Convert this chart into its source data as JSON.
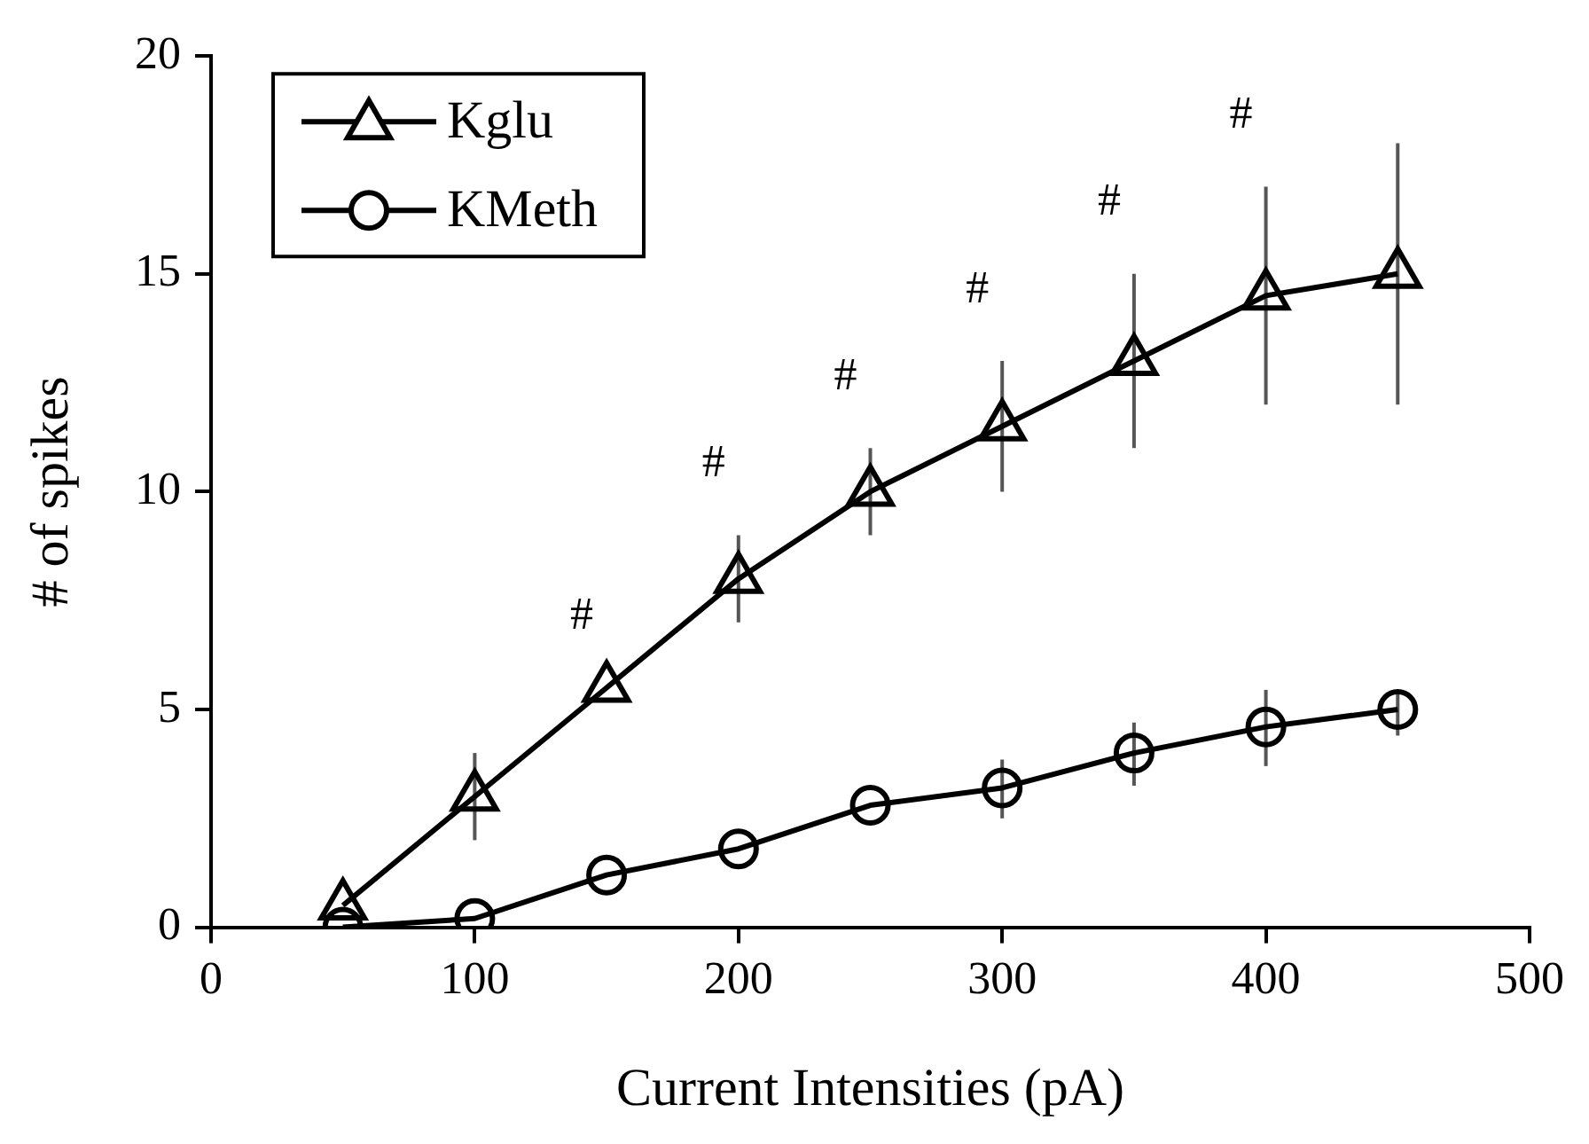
{
  "chart_data": {
    "type": "line",
    "xlabel": "Current Intensities (pA)",
    "ylabel": "# of spikes",
    "x": [
      50,
      100,
      150,
      200,
      250,
      300,
      350,
      400,
      450
    ],
    "xlim": [
      0,
      500
    ],
    "xticks": [
      0,
      100,
      200,
      300,
      400,
      500
    ],
    "ylim": [
      0,
      20
    ],
    "yticks": [
      0,
      5,
      10,
      15,
      20
    ],
    "grid": false,
    "legend": "top left",
    "line_style": "solid",
    "series": [
      {
        "name": "Kglu",
        "color": "#000000",
        "marker": "triangle",
        "values": [
          0.5,
          3,
          5.5,
          8,
          10,
          11.5,
          13,
          14.5,
          15
        ],
        "errors": [
          null,
          1,
          null,
          1,
          1,
          [
            10,
            13
          ],
          [
            11,
            15
          ],
          [
            12,
            17
          ],
          [
            12,
            18
          ]
        ]
      },
      {
        "name": "KMeth",
        "color": "#000000",
        "marker": "circle",
        "values": [
          0,
          0.2,
          1.2,
          1.8,
          2.8,
          3.2,
          4,
          4.6,
          5
        ],
        "errors": [
          null,
          null,
          null,
          null,
          null,
          [
            2.5,
            3.85
          ],
          [
            3.25,
            4.7
          ],
          [
            3.7,
            5.45
          ],
          [
            4.4,
            5.4
          ]
        ]
      }
    ],
    "annotations": [
      {
        "text": "#",
        "x": 150,
        "y": 5.5
      },
      {
        "text": "#",
        "x": 200,
        "y": 9
      },
      {
        "text": "#",
        "x": 250,
        "y": 11
      },
      {
        "text": "#",
        "x": 300,
        "y": 13
      },
      {
        "text": "#",
        "x": 350,
        "y": 15
      },
      {
        "text": "#",
        "x": 400,
        "y": 17
      }
    ]
  }
}
